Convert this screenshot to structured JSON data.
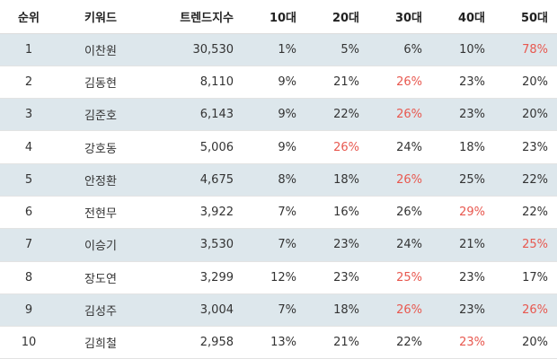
{
  "headers": [
    "순위",
    "키워드",
    "트렌드지수",
    "10대",
    "20대",
    "30대",
    "40대",
    "50대"
  ],
  "highlight_color": "#e8584f",
  "row_stripe_color": "#dde7ec",
  "rows": [
    {
      "rank": "1",
      "keyword": "이찬원",
      "index": "30,530",
      "ages": [
        "1%",
        "5%",
        "6%",
        "10%",
        "78%"
      ],
      "highlight": [
        false,
        false,
        false,
        false,
        true
      ]
    },
    {
      "rank": "2",
      "keyword": "김동현",
      "index": "8,110",
      "ages": [
        "9%",
        "21%",
        "26%",
        "23%",
        "20%"
      ],
      "highlight": [
        false,
        false,
        true,
        false,
        false
      ]
    },
    {
      "rank": "3",
      "keyword": "김준호",
      "index": "6,143",
      "ages": [
        "9%",
        "22%",
        "26%",
        "23%",
        "20%"
      ],
      "highlight": [
        false,
        false,
        true,
        false,
        false
      ]
    },
    {
      "rank": "4",
      "keyword": "강호동",
      "index": "5,006",
      "ages": [
        "9%",
        "26%",
        "24%",
        "18%",
        "23%"
      ],
      "highlight": [
        false,
        true,
        false,
        false,
        false
      ]
    },
    {
      "rank": "5",
      "keyword": "안정환",
      "index": "4,675",
      "ages": [
        "8%",
        "18%",
        "26%",
        "25%",
        "22%"
      ],
      "highlight": [
        false,
        false,
        true,
        false,
        false
      ]
    },
    {
      "rank": "6",
      "keyword": "전현무",
      "index": "3,922",
      "ages": [
        "7%",
        "16%",
        "26%",
        "29%",
        "22%"
      ],
      "highlight": [
        false,
        false,
        false,
        true,
        false
      ]
    },
    {
      "rank": "7",
      "keyword": "이승기",
      "index": "3,530",
      "ages": [
        "7%",
        "23%",
        "24%",
        "21%",
        "25%"
      ],
      "highlight": [
        false,
        false,
        false,
        false,
        true
      ]
    },
    {
      "rank": "8",
      "keyword": "장도연",
      "index": "3,299",
      "ages": [
        "12%",
        "23%",
        "25%",
        "23%",
        "17%"
      ],
      "highlight": [
        false,
        false,
        true,
        false,
        false
      ]
    },
    {
      "rank": "9",
      "keyword": "김성주",
      "index": "3,004",
      "ages": [
        "7%",
        "18%",
        "26%",
        "23%",
        "26%"
      ],
      "highlight": [
        false,
        false,
        true,
        false,
        true
      ]
    },
    {
      "rank": "10",
      "keyword": "김희철",
      "index": "2,958",
      "ages": [
        "13%",
        "21%",
        "22%",
        "23%",
        "20%"
      ],
      "highlight": [
        false,
        false,
        false,
        true,
        false
      ]
    }
  ]
}
